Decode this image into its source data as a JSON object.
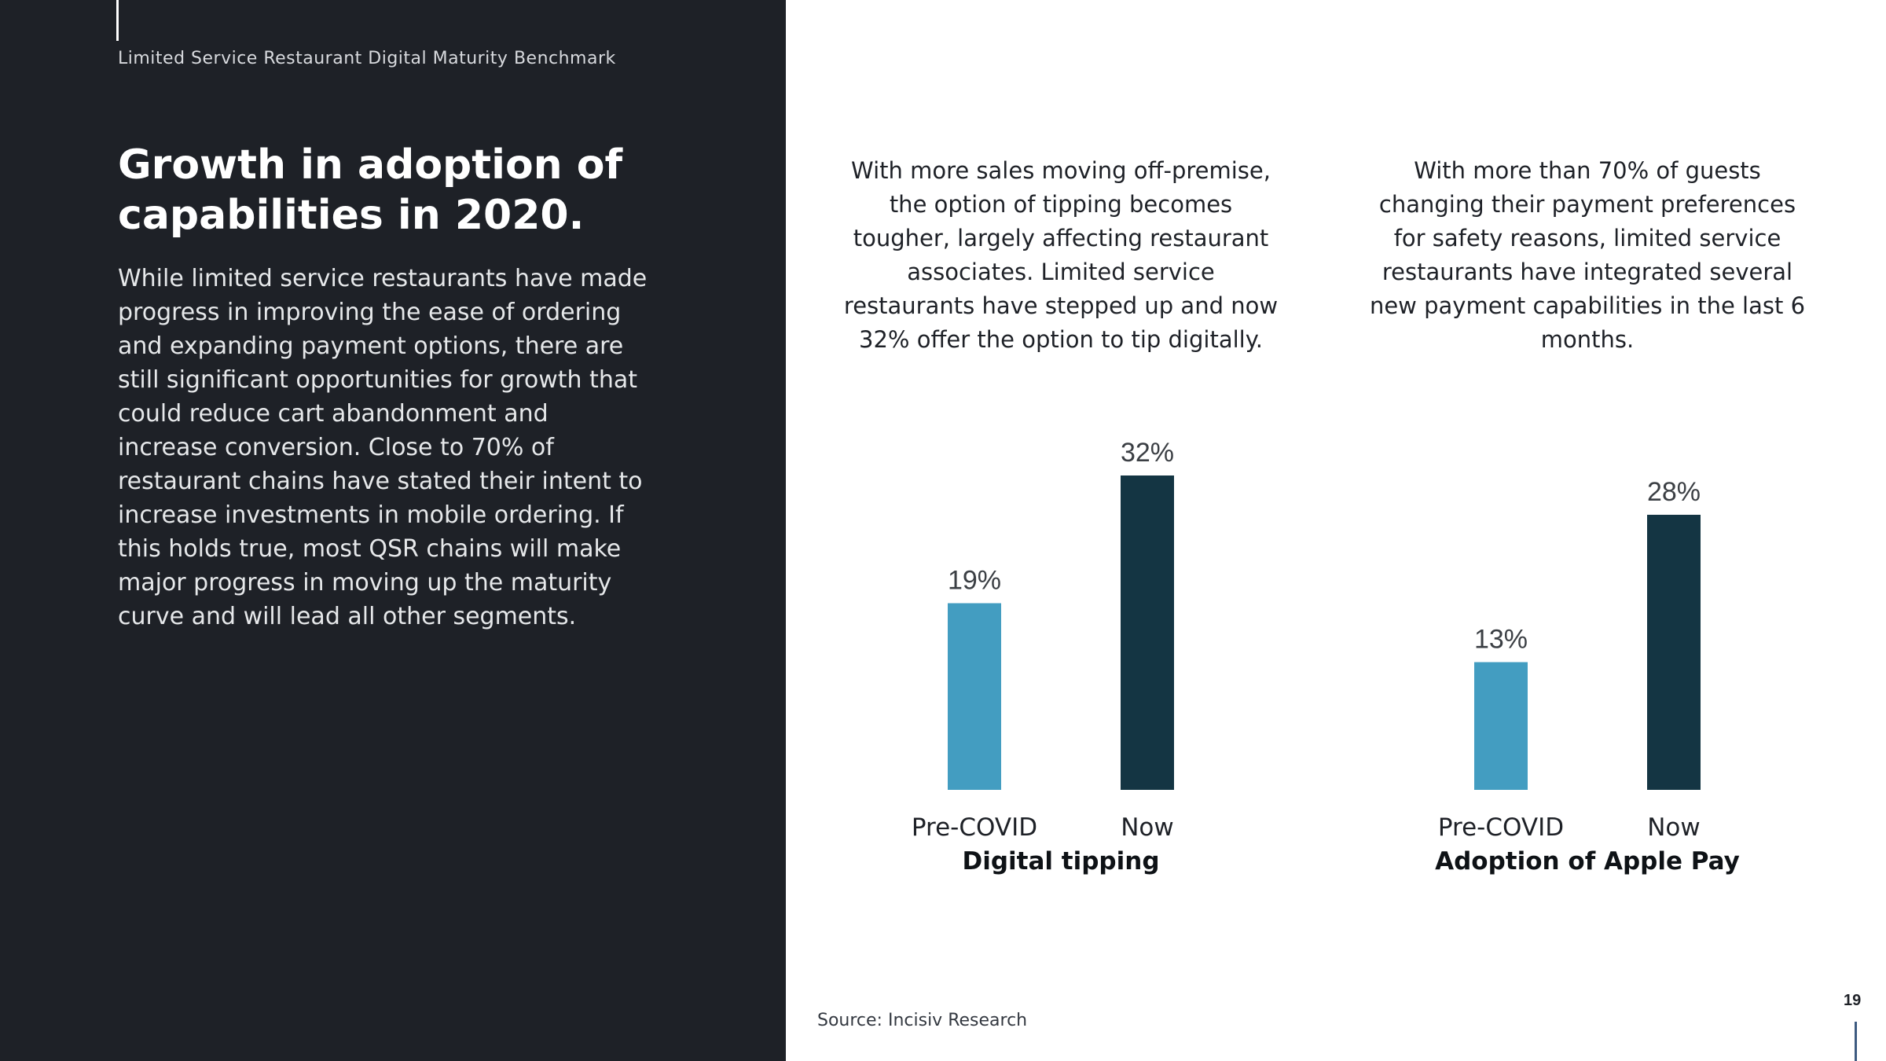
{
  "header": {
    "label": "Limited Service Restaurant Digital Maturity Benchmark"
  },
  "title": "Growth in adoption of capabilities in 2020.",
  "body": "While limited service restaurants have made progress in improving the ease of ordering and expanding payment options, there are still significant opportunities for growth that could reduce cart abandonment and increase conversion. Close to 70% of restaurant chains have stated their intent to increase investments in mobile ordering. If this holds true, most QSR chains will make major progress in moving up the maturity curve and will lead all other segments.",
  "charts": [
    {
      "description": "With more sales moving off-premise, the option of tipping becomes tougher, largely affecting restaurant associates. Limited service restaurants have stepped up and now 32% offer the option to tip digitally."
    },
    {
      "description": "With more than 70% of guests changing their payment preferences for safety reasons, limited service restaurants have integrated several new payment capabilities in the last 6 months."
    }
  ],
  "chart_data": [
    {
      "type": "bar",
      "title": "Digital tipping",
      "categories": [
        "Pre-COVID",
        "Now"
      ],
      "values": [
        19,
        32
      ],
      "value_labels": [
        "19%",
        "32%"
      ],
      "colors": [
        "#439dc1",
        "#143543"
      ],
      "ylim": [
        0,
        35
      ],
      "grid": false
    },
    {
      "type": "bar",
      "title": "Adoption of Apple Pay",
      "categories": [
        "Pre-COVID",
        "Now"
      ],
      "values": [
        13,
        28
      ],
      "value_labels": [
        "13%",
        "28%"
      ],
      "colors": [
        "#439dc1",
        "#143543"
      ],
      "ylim": [
        0,
        35
      ],
      "grid": false
    }
  ],
  "footer": {
    "source": "Source: Incisiv Research",
    "page_number": "19"
  }
}
